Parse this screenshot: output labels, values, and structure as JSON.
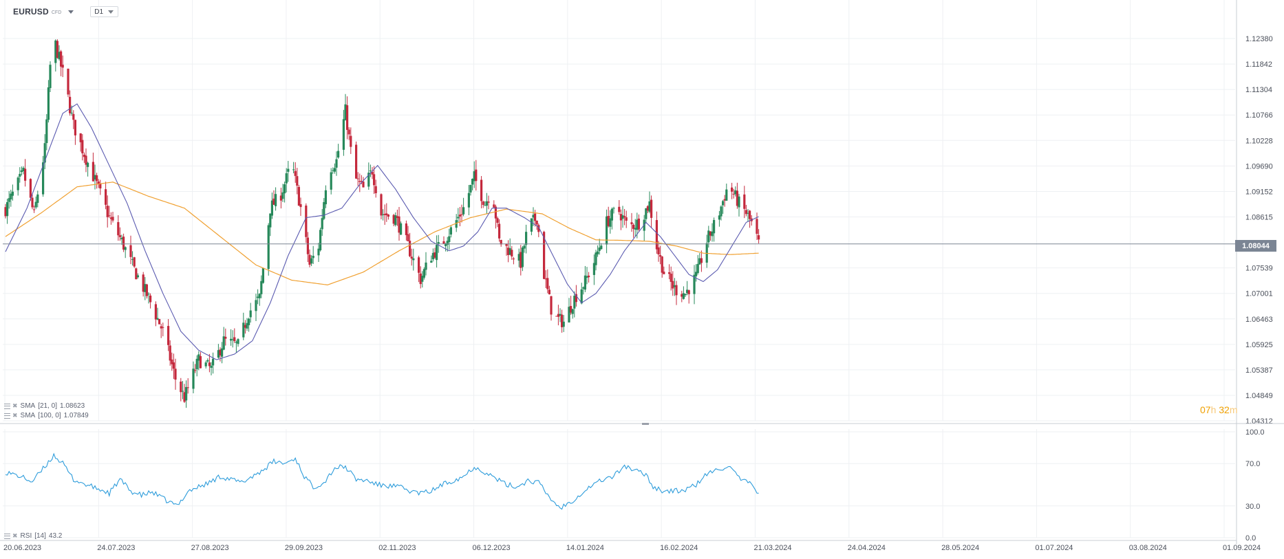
{
  "toolbar": {
    "symbol": "EURUSD",
    "symbol_type": "CFD",
    "timeframe": "D1"
  },
  "indicators": {
    "sma21": {
      "label": "SMA",
      "params": "[21, 0]",
      "value": "1.08623",
      "color": "#5a5ab0"
    },
    "sma100": {
      "label": "SMA",
      "params": "[100, 0]",
      "value": "1.07849",
      "color": "#f0a030"
    },
    "rsi": {
      "label": "RSI",
      "params": "[14]",
      "value": "43.2",
      "color": "#2d9cdb"
    }
  },
  "countdown": {
    "hours": "07",
    "h_unit": "h",
    "minutes": "32",
    "m_unit": "m"
  },
  "colors": {
    "bull": "#26885a",
    "bear": "#c4283c",
    "grid": "#eef0f3",
    "axis_text": "#4a4f5a",
    "price_line": "#7b8594"
  },
  "chart_data": {
    "type": "candlestick",
    "title": "",
    "current_price": "1.08044",
    "price_axis": {
      "ticks": [
        "1.12380",
        "1.11842",
        "1.11304",
        "1.10766",
        "1.10228",
        "1.09690",
        "1.09152",
        "1.08615",
        "1.07539",
        "1.07001",
        "1.06463",
        "1.05925",
        "1.05387",
        "1.04849",
        "1.04312"
      ],
      "range": [
        1.04312,
        1.1238
      ]
    },
    "time_axis": {
      "ticks": [
        "20.06.2023",
        "24.07.2023",
        "27.08.2023",
        "29.09.2023",
        "02.11.2023",
        "06.12.2023",
        "14.01.2024",
        "16.02.2024",
        "21.03.2024",
        "24.04.2024",
        "28.05.2024",
        "01.07.2024",
        "03.08.2024",
        "01.09.2024"
      ]
    },
    "rsi_axis": {
      "ticks": [
        "100.0",
        "70.0",
        "30.0",
        "0.0"
      ],
      "range": [
        0,
        100
      ]
    },
    "close_path": [
      {
        "d": 0,
        "c": 1.0878
      },
      {
        "d": 10,
        "c": 1.0955
      },
      {
        "d": 16,
        "c": 1.0865
      },
      {
        "d": 22,
        "c": 1.1005
      },
      {
        "d": 25,
        "c": 1.118
      },
      {
        "d": 28,
        "c": 1.1225
      },
      {
        "d": 33,
        "c": 1.115
      },
      {
        "d": 38,
        "c": 1.1055
      },
      {
        "d": 45,
        "c": 1.0985
      },
      {
        "d": 52,
        "c": 1.092
      },
      {
        "d": 58,
        "c": 1.086
      },
      {
        "d": 65,
        "c": 1.081
      },
      {
        "d": 72,
        "c": 1.075
      },
      {
        "d": 80,
        "c": 1.069
      },
      {
        "d": 88,
        "c": 1.062
      },
      {
        "d": 95,
        "c": 1.052
      },
      {
        "d": 100,
        "c": 1.048
      },
      {
        "d": 108,
        "c": 1.056
      },
      {
        "d": 115,
        "c": 1.054
      },
      {
        "d": 122,
        "c": 1.06
      },
      {
        "d": 130,
        "c": 1.059
      },
      {
        "d": 136,
        "c": 1.066
      },
      {
        "d": 142,
        "c": 1.069
      },
      {
        "d": 148,
        "c": 1.088
      },
      {
        "d": 154,
        "c": 1.091
      },
      {
        "d": 160,
        "c": 1.0975
      },
      {
        "d": 165,
        "c": 1.088
      },
      {
        "d": 170,
        "c": 1.076
      },
      {
        "d": 175,
        "c": 1.08
      },
      {
        "d": 180,
        "c": 1.096
      },
      {
        "d": 185,
        "c": 1.098
      },
      {
        "d": 190,
        "c": 1.1085
      },
      {
        "d": 195,
        "c": 1.0945
      },
      {
        "d": 200,
        "c": 1.092
      },
      {
        "d": 205,
        "c": 1.096
      },
      {
        "d": 210,
        "c": 1.087
      },
      {
        "d": 218,
        "c": 1.086
      },
      {
        "d": 225,
        "c": 1.08
      },
      {
        "d": 232,
        "c": 1.073
      },
      {
        "d": 238,
        "c": 1.078
      },
      {
        "d": 244,
        "c": 1.0805
      },
      {
        "d": 250,
        "c": 1.084
      },
      {
        "d": 256,
        "c": 1.088
      },
      {
        "d": 262,
        "c": 1.0945
      },
      {
        "d": 268,
        "c": 1.089
      },
      {
        "d": 272,
        "c": 1.092
      },
      {
        "d": 276,
        "c": 1.081
      },
      {
        "d": 282,
        "c": 1.079
      },
      {
        "d": 288,
        "c": 1.0765
      },
      {
        "d": 292,
        "c": 1.084
      },
      {
        "d": 297,
        "c": 1.086
      },
      {
        "d": 301,
        "c": 1.074
      },
      {
        "d": 306,
        "c": 1.065
      },
      {
        "d": 312,
        "c": 1.064
      },
      {
        "d": 318,
        "c": 1.069
      },
      {
        "d": 324,
        "c": 1.0725
      },
      {
        "d": 330,
        "c": 1.0775
      },
      {
        "d": 336,
        "c": 1.085
      },
      {
        "d": 342,
        "c": 1.088
      },
      {
        "d": 348,
        "c": 1.084
      },
      {
        "d": 354,
        "c": 1.085
      },
      {
        "d": 360,
        "c": 1.089
      },
      {
        "d": 364,
        "c": 1.08
      },
      {
        "d": 368,
        "c": 1.0745
      },
      {
        "d": 374,
        "c": 1.071
      },
      {
        "d": 380,
        "c": 1.07
      },
      {
        "d": 386,
        "c": 1.0735
      },
      {
        "d": 392,
        "c": 1.081
      },
      {
        "d": 398,
        "c": 1.086
      },
      {
        "d": 404,
        "c": 1.093
      },
      {
        "d": 410,
        "c": 1.089
      },
      {
        "d": 414,
        "c": 1.087
      },
      {
        "d": 418,
        "c": 1.084
      },
      {
        "d": 421,
        "c": 1.0805
      }
    ],
    "sma21_path": [
      {
        "d": 0,
        "v": 1.0788
      },
      {
        "d": 12,
        "v": 1.088
      },
      {
        "d": 22,
        "v": 1.098
      },
      {
        "d": 32,
        "v": 1.108
      },
      {
        "d": 40,
        "v": 1.11
      },
      {
        "d": 48,
        "v": 1.105
      },
      {
        "d": 58,
        "v": 1.097
      },
      {
        "d": 68,
        "v": 1.089
      },
      {
        "d": 78,
        "v": 1.079
      },
      {
        "d": 88,
        "v": 1.07
      },
      {
        "d": 98,
        "v": 1.062
      },
      {
        "d": 108,
        "v": 1.058
      },
      {
        "d": 118,
        "v": 1.056
      },
      {
        "d": 128,
        "v": 1.0572
      },
      {
        "d": 138,
        "v": 1.06
      },
      {
        "d": 148,
        "v": 1.068
      },
      {
        "d": 158,
        "v": 1.078
      },
      {
        "d": 168,
        "v": 1.086
      },
      {
        "d": 178,
        "v": 1.0865
      },
      {
        "d": 188,
        "v": 1.088
      },
      {
        "d": 198,
        "v": 1.093
      },
      {
        "d": 208,
        "v": 1.097
      },
      {
        "d": 218,
        "v": 1.092
      },
      {
        "d": 228,
        "v": 1.086
      },
      {
        "d": 238,
        "v": 1.081
      },
      {
        "d": 248,
        "v": 1.079
      },
      {
        "d": 256,
        "v": 1.08
      },
      {
        "d": 264,
        "v": 1.083
      },
      {
        "d": 272,
        "v": 1.088
      },
      {
        "d": 280,
        "v": 1.088
      },
      {
        "d": 290,
        "v": 1.086
      },
      {
        "d": 298,
        "v": 1.084
      },
      {
        "d": 306,
        "v": 1.078
      },
      {
        "d": 314,
        "v": 1.072
      },
      {
        "d": 322,
        "v": 1.068
      },
      {
        "d": 330,
        "v": 1.07
      },
      {
        "d": 338,
        "v": 1.074
      },
      {
        "d": 346,
        "v": 1.079
      },
      {
        "d": 352,
        "v": 1.082
      },
      {
        "d": 358,
        "v": 1.085
      },
      {
        "d": 366,
        "v": 1.082
      },
      {
        "d": 374,
        "v": 1.078
      },
      {
        "d": 382,
        "v": 1.074
      },
      {
        "d": 390,
        "v": 1.0725
      },
      {
        "d": 398,
        "v": 1.075
      },
      {
        "d": 406,
        "v": 1.08
      },
      {
        "d": 414,
        "v": 1.085
      },
      {
        "d": 421,
        "v": 1.0862
      }
    ],
    "sma100_path": [
      {
        "d": 0,
        "v": 1.082
      },
      {
        "d": 20,
        "v": 1.087
      },
      {
        "d": 40,
        "v": 1.0925
      },
      {
        "d": 60,
        "v": 1.0935
      },
      {
        "d": 80,
        "v": 1.0905
      },
      {
        "d": 100,
        "v": 1.088
      },
      {
        "d": 120,
        "v": 1.082
      },
      {
        "d": 140,
        "v": 1.076
      },
      {
        "d": 160,
        "v": 1.0728
      },
      {
        "d": 180,
        "v": 1.0718
      },
      {
        "d": 200,
        "v": 1.0745
      },
      {
        "d": 220,
        "v": 1.079
      },
      {
        "d": 240,
        "v": 1.083
      },
      {
        "d": 260,
        "v": 1.086
      },
      {
        "d": 280,
        "v": 1.0878
      },
      {
        "d": 300,
        "v": 1.0868
      },
      {
        "d": 315,
        "v": 1.0838
      },
      {
        "d": 330,
        "v": 1.0813
      },
      {
        "d": 345,
        "v": 1.0812
      },
      {
        "d": 360,
        "v": 1.081
      },
      {
        "d": 375,
        "v": 1.08
      },
      {
        "d": 390,
        "v": 1.0785
      },
      {
        "d": 405,
        "v": 1.0782
      },
      {
        "d": 421,
        "v": 1.0785
      }
    ],
    "rsi_path": [
      {
        "d": 0,
        "v": 62
      },
      {
        "d": 8,
        "v": 58
      },
      {
        "d": 15,
        "v": 53
      },
      {
        "d": 22,
        "v": 67
      },
      {
        "d": 27,
        "v": 78
      },
      {
        "d": 32,
        "v": 70
      },
      {
        "d": 38,
        "v": 55
      },
      {
        "d": 45,
        "v": 50
      },
      {
        "d": 52,
        "v": 46
      },
      {
        "d": 58,
        "v": 42
      },
      {
        "d": 64,
        "v": 55
      },
      {
        "d": 70,
        "v": 44
      },
      {
        "d": 76,
        "v": 40
      },
      {
        "d": 82,
        "v": 43
      },
      {
        "d": 90,
        "v": 35
      },
      {
        "d": 96,
        "v": 30
      },
      {
        "d": 102,
        "v": 44
      },
      {
        "d": 108,
        "v": 48
      },
      {
        "d": 114,
        "v": 52
      },
      {
        "d": 120,
        "v": 58
      },
      {
        "d": 126,
        "v": 55
      },
      {
        "d": 132,
        "v": 52
      },
      {
        "d": 138,
        "v": 58
      },
      {
        "d": 144,
        "v": 64
      },
      {
        "d": 150,
        "v": 72
      },
      {
        "d": 156,
        "v": 70
      },
      {
        "d": 162,
        "v": 75
      },
      {
        "d": 167,
        "v": 58
      },
      {
        "d": 172,
        "v": 48
      },
      {
        "d": 178,
        "v": 52
      },
      {
        "d": 184,
        "v": 66
      },
      {
        "d": 190,
        "v": 67
      },
      {
        "d": 196,
        "v": 55
      },
      {
        "d": 202,
        "v": 54
      },
      {
        "d": 208,
        "v": 50
      },
      {
        "d": 214,
        "v": 49
      },
      {
        "d": 220,
        "v": 48
      },
      {
        "d": 226,
        "v": 44
      },
      {
        "d": 232,
        "v": 42
      },
      {
        "d": 238,
        "v": 44
      },
      {
        "d": 244,
        "v": 50
      },
      {
        "d": 250,
        "v": 54
      },
      {
        "d": 256,
        "v": 58
      },
      {
        "d": 262,
        "v": 67
      },
      {
        "d": 268,
        "v": 62
      },
      {
        "d": 274,
        "v": 56
      },
      {
        "d": 280,
        "v": 50
      },
      {
        "d": 286,
        "v": 48
      },
      {
        "d": 292,
        "v": 54
      },
      {
        "d": 298,
        "v": 52
      },
      {
        "d": 304,
        "v": 38
      },
      {
        "d": 310,
        "v": 28
      },
      {
        "d": 316,
        "v": 34
      },
      {
        "d": 322,
        "v": 42
      },
      {
        "d": 328,
        "v": 50
      },
      {
        "d": 334,
        "v": 55
      },
      {
        "d": 340,
        "v": 58
      },
      {
        "d": 346,
        "v": 68
      },
      {
        "d": 352,
        "v": 63
      },
      {
        "d": 358,
        "v": 60
      },
      {
        "d": 362,
        "v": 48
      },
      {
        "d": 368,
        "v": 44
      },
      {
        "d": 374,
        "v": 44
      },
      {
        "d": 380,
        "v": 45
      },
      {
        "d": 386,
        "v": 50
      },
      {
        "d": 392,
        "v": 60
      },
      {
        "d": 398,
        "v": 64
      },
      {
        "d": 404,
        "v": 68
      },
      {
        "d": 410,
        "v": 56
      },
      {
        "d": 415,
        "v": 52
      },
      {
        "d": 421,
        "v": 43
      }
    ]
  }
}
